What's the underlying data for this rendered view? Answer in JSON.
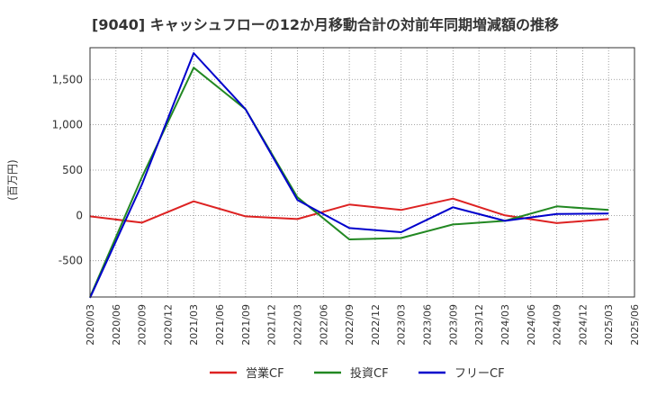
{
  "chart_data": {
    "type": "line",
    "title": "[9040]  キャッシュフローの12か月移動合計の対前年同期増減額の推移",
    "ylabel": "(百万円)",
    "xlabel": "",
    "ylim": [
      -900,
      1850
    ],
    "yticks": [
      -500,
      0,
      500,
      1000,
      1500
    ],
    "ytick_labels": [
      "-500",
      "0",
      "500",
      "1,000",
      "1,500"
    ],
    "xticks": [
      "2020/03",
      "2020/06",
      "2020/09",
      "2020/12",
      "2021/03",
      "2021/06",
      "2021/09",
      "2021/12",
      "2022/03",
      "2022/06",
      "2022/09",
      "2022/12",
      "2023/03",
      "2023/06",
      "2023/09",
      "2023/12",
      "2024/03",
      "2024/06",
      "2024/09",
      "2024/12",
      "2025/03",
      "2025/06"
    ],
    "grid": true,
    "legend_position": "bottom",
    "series": [
      {
        "name": "営業CF",
        "color": "#dd2222",
        "points": [
          [
            "2020/03",
            -10
          ],
          [
            "2020/09",
            -80
          ],
          [
            "2021/03",
            155
          ],
          [
            "2021/09",
            -10
          ],
          [
            "2022/03",
            -40
          ],
          [
            "2022/09",
            120
          ],
          [
            "2023/03",
            60
          ],
          [
            "2023/09",
            185
          ],
          [
            "2024/03",
            0
          ],
          [
            "2024/09",
            -85
          ],
          [
            "2025/03",
            -40
          ]
        ]
      },
      {
        "name": "投資CF",
        "color": "#228822",
        "points": [
          [
            "2020/03",
            -900
          ],
          [
            "2020/09",
            420
          ],
          [
            "2021/03",
            1630
          ],
          [
            "2021/09",
            1170
          ],
          [
            "2022/03",
            200
          ],
          [
            "2022/09",
            -265
          ],
          [
            "2023/03",
            -250
          ],
          [
            "2023/09",
            -100
          ],
          [
            "2024/03",
            -60
          ],
          [
            "2024/09",
            100
          ],
          [
            "2025/03",
            60
          ]
        ]
      },
      {
        "name": "フリーCF",
        "color": "#0000cc",
        "points": [
          [
            "2020/03",
            -910
          ],
          [
            "2020/09",
            340
          ],
          [
            "2021/03",
            1790
          ],
          [
            "2021/09",
            1170
          ],
          [
            "2022/03",
            170
          ],
          [
            "2022/09",
            -140
          ],
          [
            "2023/03",
            -185
          ],
          [
            "2023/09",
            90
          ],
          [
            "2024/03",
            -60
          ],
          [
            "2024/09",
            15
          ],
          [
            "2025/03",
            20
          ]
        ]
      }
    ]
  }
}
